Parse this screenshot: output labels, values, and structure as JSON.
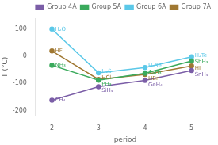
{
  "chart_data": {
    "type": "line",
    "xlabel": "period",
    "ylabel": "T (°C)",
    "x": [
      2,
      3,
      4,
      5
    ],
    "xlim": [
      1.65,
      5.5
    ],
    "xticks": [
      2,
      3,
      4,
      5
    ],
    "ylim": [
      -220,
      140
    ],
    "yticks": [
      -200,
      -100,
      0,
      100
    ],
    "grid": false,
    "legend": "upper right",
    "marker": "circle",
    "series": [
      {
        "name": "Group 4A",
        "color": "#7b5ea7",
        "values": [
          -161.5,
          -111.8,
          -88.6,
          -52.0
        ],
        "labels": [
          "CH₄",
          "SiH₄",
          "GeH₄",
          "SnH₄"
        ]
      },
      {
        "name": "Group 5A",
        "color": "#3aaa5c",
        "values": [
          -33.0,
          -87.7,
          -62.5,
          -17.1
        ],
        "labels": [
          "NH₃",
          "PH₃",
          "AsH₃",
          "SbH₃"
        ]
      },
      {
        "name": "Group 6A",
        "color": "#5bc8e8",
        "values": [
          100.0,
          -60.7,
          -41.5,
          -2.2
        ],
        "labels": [
          "H₂O",
          "H₂S",
          "H₂Se",
          "H₂Te"
        ]
      },
      {
        "name": "Group 7A",
        "color": "#a07832",
        "values": [
          19.5,
          -85.0,
          -66.8,
          -35.4
        ],
        "labels": [
          "HF",
          "HCl",
          "HBr",
          "HI"
        ]
      }
    ]
  }
}
